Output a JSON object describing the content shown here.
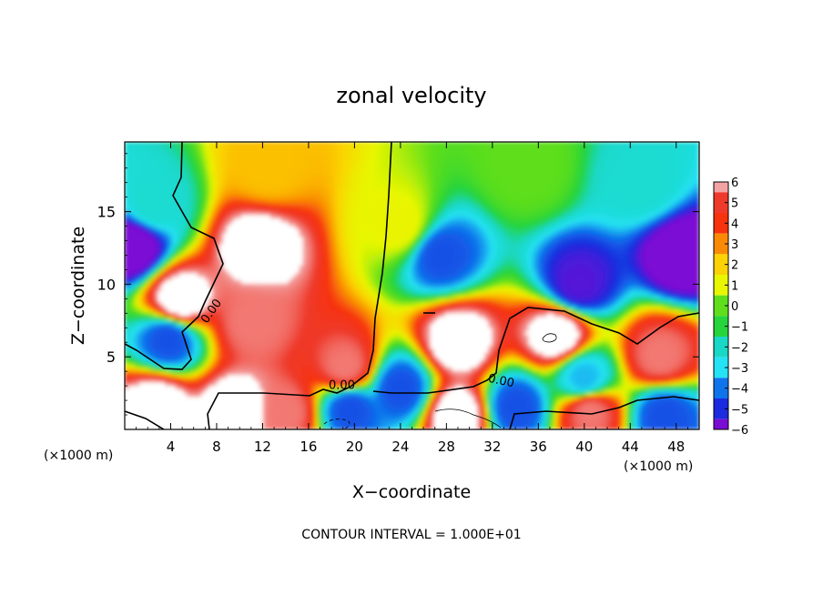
{
  "chart_data": {
    "type": "heatmap",
    "title": "zonal velocity",
    "xlabel": "X−coordinate",
    "ylabel": "Z−coordinate",
    "x_unit_left": "(×1000 m)",
    "x_unit_right": "(×1000 m)",
    "footer": "CONTOUR INTERVAL = 1.000E+01",
    "xlim": [
      0,
      50
    ],
    "ylim": [
      0,
      19.8
    ],
    "x_ticks": [
      4,
      8,
      12,
      16,
      20,
      24,
      28,
      32,
      36,
      40,
      44,
      48
    ],
    "y_ticks": [
      5,
      10,
      15
    ],
    "colorbar": {
      "range": [
        -6,
        6
      ],
      "ticks": [
        6,
        5,
        4,
        3,
        2,
        1,
        0,
        -1,
        -2,
        -3,
        -4,
        -5,
        -6
      ],
      "tick_labels": [
        "6",
        "5",
        "4",
        "3",
        "2",
        "1",
        "0",
        "−1",
        "−2",
        "−3",
        "−4",
        "−5",
        "−6"
      ],
      "colors_high_to_low": [
        "#f4a3a3",
        "#ef3a2b",
        "#f7320f",
        "#fa8a05",
        "#fbd203",
        "#e8f700",
        "#5fdf1b",
        "#26d43c",
        "#1ad8c6",
        "#24e3f4",
        "#0f74ec",
        "#1b2bdf",
        "#7b0cd4"
      ]
    },
    "contour_labels": [
      {
        "text": "0.00",
        "x": 7.8,
        "y": 8.0
      },
      {
        "text": "0.00",
        "x": 18.9,
        "y": 2.8
      },
      {
        "text": "0.00",
        "x": 32.7,
        "y": 3.1
      }
    ],
    "approximate_features": [
      {
        "x": 11.6,
        "z": 12.6,
        "u": 6
      },
      {
        "x": 11.2,
        "z": 7.4,
        "u": 5
      },
      {
        "x": 19.2,
        "z": 4.3,
        "u": 5
      },
      {
        "x": 37.6,
        "z": 6.5,
        "u": 6
      },
      {
        "x": 4.8,
        "z": 8.9,
        "u": 6
      },
      {
        "x": 29.0,
        "z": 6.0,
        "u": 6
      },
      {
        "x": 9.6,
        "z": 1.2,
        "u": 6
      },
      {
        "x": 2.8,
        "z": 1.6,
        "u": 6
      },
      {
        "x": 29.0,
        "z": 1.0,
        "u": 6
      },
      {
        "x": 46.6,
        "z": 5.0,
        "u": 5
      },
      {
        "x": 14.0,
        "z": 1.2,
        "u": 5
      },
      {
        "x": 40.5,
        "z": 1.2,
        "u": 5
      },
      {
        "x": 0.6,
        "z": 12.6,
        "u": -6
      },
      {
        "x": 39.5,
        "z": 10.0,
        "u": -5
      },
      {
        "x": 27.5,
        "z": 12.0,
        "u": -4
      },
      {
        "x": 48.7,
        "z": 12.0,
        "u": -6
      },
      {
        "x": 3.8,
        "z": 6.2,
        "u": -4
      },
      {
        "x": 19.6,
        "z": 1.4,
        "u": -4
      },
      {
        "x": 24.0,
        "z": 2.8,
        "u": -4
      },
      {
        "x": 34.0,
        "z": 1.5,
        "u": -4
      },
      {
        "x": 40.0,
        "z": 3.5,
        "u": -3
      },
      {
        "x": 47.0,
        "z": 1.0,
        "u": -4
      },
      {
        "x": 12.5,
        "z": 18.0,
        "u": 2
      },
      {
        "x": 35.0,
        "z": 18.0,
        "u": 0
      },
      {
        "x": 24.0,
        "z": 14.0,
        "u": 1
      },
      {
        "x": 2.5,
        "z": 15.5,
        "u": -2
      },
      {
        "x": 45.0,
        "z": 17.0,
        "u": -2
      }
    ]
  }
}
